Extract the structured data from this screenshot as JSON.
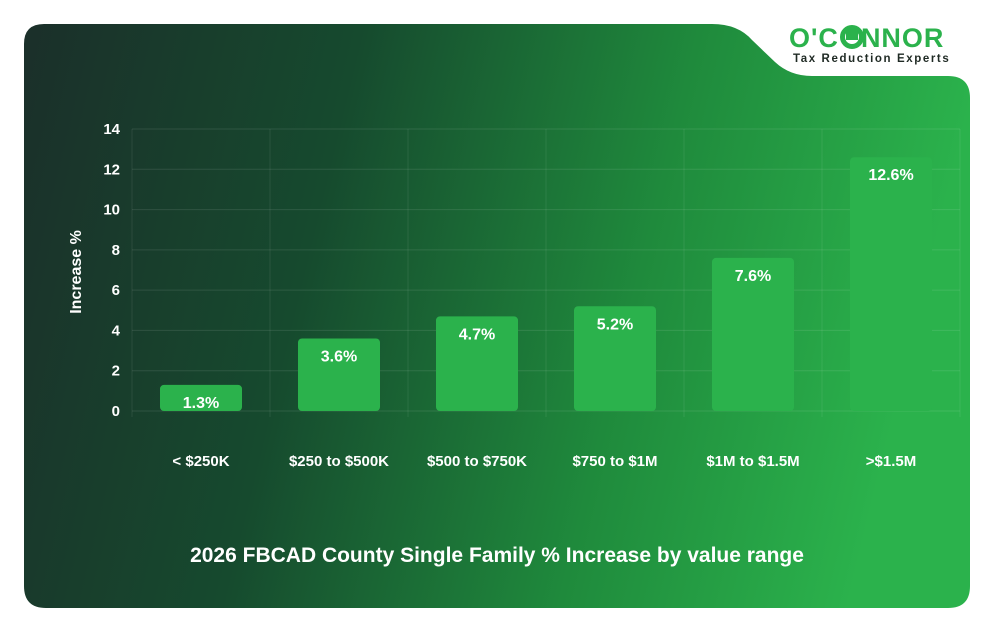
{
  "brand": {
    "name_part1": "O'C",
    "name_part2": "NNOR",
    "tagline": "Tax Reduction Experts",
    "color": "#2bb24c"
  },
  "chart_data": {
    "type": "bar",
    "title": "2026 FBCAD County Single Family % Increase by value range",
    "xlabel": "",
    "ylabel": "Increase %",
    "ylim": [
      0,
      14
    ],
    "yticks": [
      0,
      2,
      4,
      6,
      8,
      10,
      12,
      14
    ],
    "grid": true,
    "categories": [
      "< $250K",
      "$250 to $500K",
      "$500 to $750K",
      "$750 to $1M",
      "$1M to $1.5M",
      ">$1.5M"
    ],
    "values": [
      1.3,
      3.6,
      4.7,
      5.2,
      7.6,
      12.6
    ],
    "data_labels": [
      "1.3%",
      "3.6%",
      "4.7%",
      "5.2%",
      "7.6%",
      "12.6%"
    ],
    "bar_color": "#2bb24c"
  }
}
